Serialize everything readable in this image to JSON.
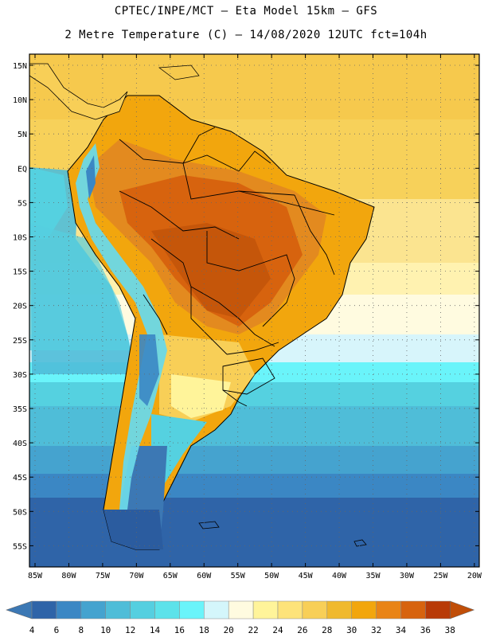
{
  "title_line1": "CPTEC/INPE/MCT –  Eta Model 15km – GFS",
  "title_line2": "2 Metre Temperature (C) – 14/08/2020 12UTC fct=104h",
  "lat_labels": [
    "15N",
    "10N",
    "5N",
    "EQ",
    "5S",
    "10S",
    "15S",
    "20S",
    "25S",
    "30S",
    "35S",
    "40S",
    "45S",
    "50S",
    "55S"
  ],
  "lon_labels": [
    "85W",
    "80W",
    "75W",
    "70W",
    "65W",
    "60W",
    "55W",
    "50W",
    "45W",
    "40W",
    "35W",
    "30W",
    "25W",
    "20W"
  ],
  "colorbar": {
    "labels": [
      "4",
      "6",
      "8",
      "10",
      "12",
      "14",
      "16",
      "18",
      "20",
      "22",
      "24",
      "26",
      "28",
      "30",
      "32",
      "34",
      "36",
      "38"
    ],
    "colors": [
      "#3c78b4",
      "#2f64a8",
      "#3b87c4",
      "#45a3cf",
      "#4fbdd8",
      "#55cfe0",
      "#5ce2ea",
      "#6af4fa",
      "#d4f6fb",
      "#fffbe0",
      "#fff49a",
      "#fde37a",
      "#f8cf57",
      "#f0b92e",
      "#f2a60d",
      "#e98416",
      "#d7630e",
      "#b83a07",
      "#c04e08"
    ]
  },
  "region_colors": {
    "ocean_cold": "#3c6eb4",
    "ocean_mid": "#4fa9d6",
    "ocean_warm": "#55d1e0",
    "ocean_pale": "#d7f5fb",
    "ocean_yellow": "#fbe490",
    "north_yellow": "#f8d35e",
    "land_hot": "#c5560a",
    "land_warm": "#e38a1f",
    "andes_cold": "#6ad8e8",
    "patagonia": "#2b5c9f"
  }
}
